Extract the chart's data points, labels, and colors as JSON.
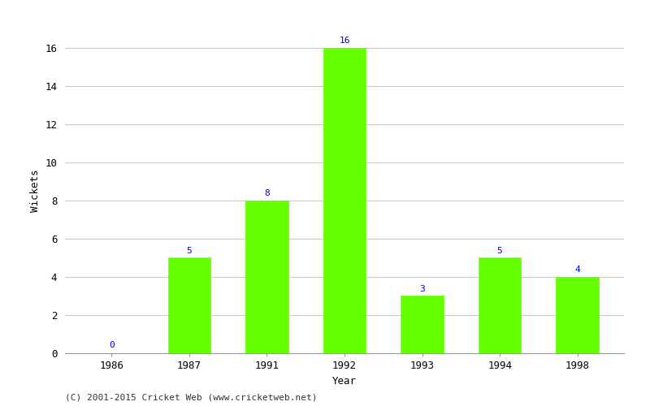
{
  "years": [
    "1986",
    "1987",
    "1991",
    "1992",
    "1993",
    "1994",
    "1998"
  ],
  "wickets": [
    0,
    5,
    8,
    16,
    3,
    5,
    4
  ],
  "bar_color": "#66ff00",
  "bar_edge_color": "#66ff00",
  "label_color": "#0000cc",
  "xlabel": "Year",
  "ylabel": "Wickets",
  "ylim": [
    0,
    17
  ],
  "yticks": [
    0,
    2,
    4,
    6,
    8,
    10,
    12,
    14,
    16
  ],
  "grid_color": "#cccccc",
  "background_color": "#ffffff",
  "footer": "(C) 2001-2015 Cricket Web (www.cricketweb.net)",
  "label_fontsize": 8,
  "axis_fontsize": 9,
  "bar_width": 0.55
}
